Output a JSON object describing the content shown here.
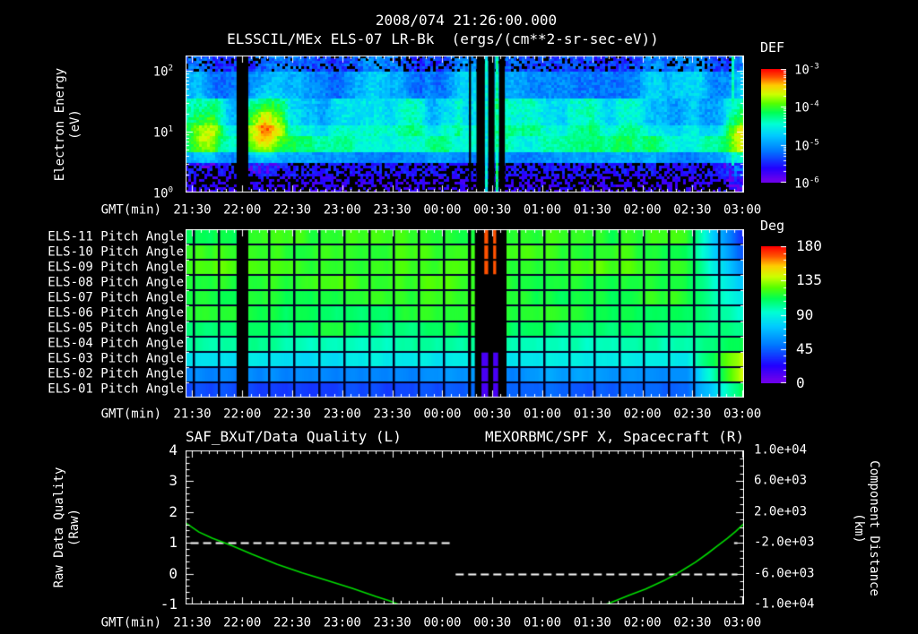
{
  "header": {
    "timestamp": "2008/074 21:26:00.000",
    "spectrogram_title": "ELSSCIL/MEx ELS-07 LR-Bk  (ergs/(cm**2-sr-sec-eV))"
  },
  "colors": {
    "background": "#000000",
    "text": "#ffffff",
    "series_green": "#00dd00",
    "grid_navy": "#000026",
    "frame": "#ffffff"
  },
  "colormap_stops": [
    [
      0.0,
      "#8000e6"
    ],
    [
      0.13,
      "#2200ff"
    ],
    [
      0.28,
      "#0077ff"
    ],
    [
      0.42,
      "#00ccff"
    ],
    [
      0.52,
      "#00ffd5"
    ],
    [
      0.62,
      "#00ff55"
    ],
    [
      0.7,
      "#55ff00"
    ],
    [
      0.78,
      "#ccff00"
    ],
    [
      0.86,
      "#ffcc00"
    ],
    [
      0.93,
      "#ff5500"
    ],
    [
      1.0,
      "#ff0000"
    ]
  ],
  "time_axis": {
    "label": "GMT(min)",
    "start_time": "21:26",
    "span_min": 335,
    "tick_labels": [
      "21:30",
      "22:00",
      "22:30",
      "23:00",
      "23:30",
      "00:00",
      "00:30",
      "01:00",
      "01:30",
      "02:00",
      "02:30",
      "03:00"
    ],
    "tick_minutes": [
      4,
      34,
      64,
      94,
      124,
      154,
      184,
      214,
      244,
      274,
      304,
      334
    ],
    "minor_step_min": 5
  },
  "chart_data": [
    {
      "type": "heatmap",
      "name": "electron_energy_spectrogram",
      "title": "ELSSCIL/MEx ELS-07 LR-Bk",
      "units": "ergs/(cm**2-sr-sec-eV)",
      "ylabel_lines": [
        "Electron Energy",
        "(eV)"
      ],
      "y_scale": "log",
      "y_tick_exponents": [
        2,
        1,
        0
      ],
      "y_range_ev": [
        1,
        178
      ],
      "colorbar": {
        "label": "DEF",
        "tick_exponents": [
          -3,
          -4,
          -5,
          -6
        ],
        "range": [
          1e-06,
          0.001
        ]
      },
      "features": {
        "bright_band_ev": [
          4,
          9
        ],
        "data_gap_bands_min": [
          [
            30.6,
            37.6
          ],
          [
            170,
            171.2
          ],
          [
            174.5,
            179.5
          ],
          [
            181.5,
            185.3
          ],
          [
            188,
            191.5
          ]
        ],
        "restart_lines": [
          {
            "t": [
              179.6,
              181.3
            ],
            "level": 0.48
          },
          {
            "t": [
              186,
              187.6
            ],
            "level": 0.58
          }
        ],
        "right_bright_line_min": [
          326,
          328.2
        ],
        "left_blob": {
          "t_center_min": 46,
          "ev_center": 12,
          "strength": 0.38
        },
        "right_blob": {
          "t_center_min": 332,
          "ev_center": 7,
          "strength": 0.3
        }
      }
    },
    {
      "type": "heatmap",
      "name": "pitch_angle_panel",
      "row_labels": [
        "ELS-11 Pitch Angle",
        "ELS-10 Pitch Angle",
        "ELS-09 Pitch Angle",
        "ELS-08 Pitch Angle",
        "ELS-07 Pitch Angle",
        "ELS-06 Pitch Angle",
        "ELS-05 Pitch Angle",
        "ELS-04 Pitch Angle",
        "ELS-03 Pitch Angle",
        "ELS-02 Pitch Angle",
        "ELS-01 Pitch Angle"
      ],
      "colorbar": {
        "label": "Deg",
        "ticks": [
          180,
          135,
          90,
          45,
          0
        ],
        "range": [
          0,
          180
        ]
      },
      "row_values_deg": [
        115,
        116,
        122,
        118,
        115,
        112,
        110,
        100,
        81,
        58,
        40
      ],
      "right_edge_values_deg": [
        28,
        42,
        58,
        75,
        85,
        95,
        103,
        112,
        138,
        142,
        112
      ],
      "grid_step_min": 15,
      "features": {
        "black_bands_min": [
          [
            30.6,
            37.6
          ],
          [
            170,
            171.2
          ],
          [
            173.5,
            192.5
          ]
        ],
        "hot_stripes": {
          "rows": [
            0,
            1,
            2
          ],
          "deg": 168,
          "t": [
            [
              179.2,
              181.5
            ],
            [
              184.5,
              186.3
            ]
          ]
        },
        "cold_stripes": {
          "rows": [
            8,
            9,
            10
          ],
          "deg": 14,
          "t": [
            [
              177.5,
              181.5
            ],
            [
              184.5,
              187.5
            ]
          ]
        },
        "right_transition_start_min": 300
      }
    },
    {
      "type": "line",
      "name": "quality_and_orbit",
      "title_left": "SAF_BXuT/Data Quality (L)",
      "title_right": "MEXORBMC/SPF X, Spacecraft (R)",
      "left_axis": {
        "label_lines": [
          "Raw Data Quality",
          "(Raw)"
        ],
        "ticks": [
          4,
          3,
          2,
          1,
          0,
          -1
        ],
        "range": [
          4,
          -1
        ],
        "minor_step": 0.2
      },
      "right_axis": {
        "label_lines": [
          "Component Distance",
          "(km)"
        ],
        "tick_labels": [
          "1.0e+04",
          "6.0e+03",
          "2.0e+03",
          "-2.0e+03",
          "-6.0e+03",
          "-1.0e+04"
        ],
        "range": [
          10000,
          -10000
        ],
        "minor_step": 1000
      },
      "series": [
        {
          "name": "data_quality",
          "axis": "left",
          "color": "#ffffff",
          "style": "dashed",
          "segments": [
            {
              "value": 1,
              "t": [
                3,
                160
              ]
            },
            {
              "value": 0,
              "t": [
                162,
                331
              ]
            },
            {
              "value": 1,
              "t": [
                329,
                331
              ]
            }
          ]
        },
        {
          "name": "spacecraft_x_distance",
          "axis": "right",
          "color": "#00dd00",
          "style": "solid",
          "branches": [
            [
              [
                0,
                600
              ],
              [
                8,
                -600
              ],
              [
                16,
                -1400
              ],
              [
                27,
                -2300
              ],
              [
                40,
                -3500
              ],
              [
                55,
                -4800
              ],
              [
                70,
                -5900
              ],
              [
                85,
                -6900
              ],
              [
                100,
                -7900
              ],
              [
                114,
                -8950
              ],
              [
                122,
                -9500
              ],
              [
                129,
                -10100
              ]
            ],
            [
              [
                251,
                -10100
              ],
              [
                258,
                -9500
              ],
              [
                266,
                -8800
              ],
              [
                276,
                -8000
              ],
              [
                287,
                -6900
              ],
              [
                297,
                -5700
              ],
              [
                306,
                -4500
              ],
              [
                313,
                -3400
              ],
              [
                319,
                -2400
              ],
              [
                325,
                -1400
              ],
              [
                330,
                -500
              ],
              [
                335,
                500
              ]
            ]
          ]
        }
      ]
    }
  ]
}
